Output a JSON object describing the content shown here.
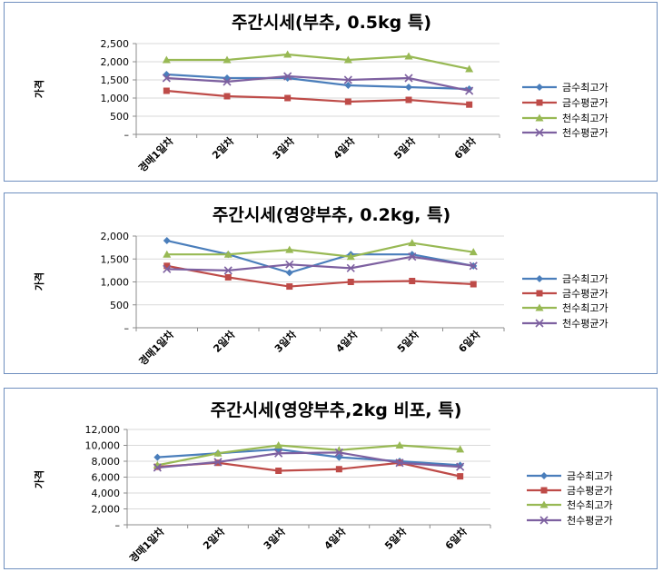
{
  "chart_data": [
    {
      "type": "line",
      "title": "주간시세(부추, 0.5kg 특)",
      "ylabel": "가격",
      "categories": [
        "경매1일차",
        "2일차",
        "3일차",
        "4일차",
        "5일차",
        "6일차"
      ],
      "yticks": [
        "–",
        "500",
        "1,000",
        "1,500",
        "2,000",
        "2,500"
      ],
      "ylim": [
        0,
        2500
      ],
      "series": [
        {
          "name": "금수최고가",
          "values": [
            1650,
            1550,
            1550,
            1350,
            1300,
            1250
          ]
        },
        {
          "name": "금수평균가",
          "values": [
            1200,
            1050,
            1000,
            900,
            950,
            820
          ]
        },
        {
          "name": "천수최고가",
          "values": [
            2050,
            2050,
            2200,
            2050,
            2150,
            1800
          ]
        },
        {
          "name": "천수평균가",
          "values": [
            1550,
            1450,
            1600,
            1500,
            1550,
            1200
          ]
        }
      ]
    },
    {
      "type": "line",
      "title": "주간시세(영양부추, 0.2kg, 특)",
      "ylabel": "가격",
      "categories": [
        "경매1일차",
        "2일차",
        "3일차",
        "4일차",
        "5일차",
        "6일차"
      ],
      "yticks": [
        "–",
        "500",
        "1,000",
        "1,500",
        "2,000"
      ],
      "ylim": [
        0,
        2000
      ],
      "series": [
        {
          "name": "금수최고가",
          "values": [
            1900,
            1600,
            1200,
            1600,
            1600,
            1350
          ]
        },
        {
          "name": "금수평균가",
          "values": [
            1350,
            1100,
            900,
            1000,
            1020,
            950
          ]
        },
        {
          "name": "천수최고가",
          "values": [
            1600,
            1600,
            1700,
            1550,
            1850,
            1650
          ]
        },
        {
          "name": "천수평균가",
          "values": [
            1280,
            1250,
            1380,
            1300,
            1550,
            1350
          ]
        }
      ]
    },
    {
      "type": "line",
      "title": "주간시세(영양부추,2kg 비포, 특)",
      "ylabel": "가격",
      "categories": [
        "경매1일차",
        "2일차",
        "3일차",
        "4일차",
        "5일차",
        "6일차"
      ],
      "yticks": [
        "–",
        "2,000",
        "4,000",
        "6,000",
        "8,000",
        "10,000",
        "12,000"
      ],
      "ylim": [
        0,
        12000
      ],
      "series": [
        {
          "name": "금수최고가",
          "values": [
            8500,
            9000,
            9500,
            8500,
            8000,
            7500
          ]
        },
        {
          "name": "금수평균가",
          "values": [
            7300,
            7800,
            6800,
            7000,
            7800,
            6100
          ]
        },
        {
          "name": "천수최고가",
          "values": [
            7500,
            9000,
            10000,
            9400,
            10000,
            9500
          ]
        },
        {
          "name": "천수평균가",
          "values": [
            7200,
            7900,
            9000,
            9100,
            7800,
            7300
          ]
        }
      ]
    }
  ],
  "colors": {
    "금수최고가": "#4a7ebb",
    "금수평균가": "#be4b48",
    "천수최고가": "#98b954",
    "천수평균가": "#7d60a0",
    "grid": "#d9d9d9",
    "axis": "#8c8c8c",
    "frame": "#6f8fbf"
  },
  "markers": {
    "금수최고가": "diamond",
    "금수평균가": "square",
    "천수최고가": "triangle",
    "천수평균가": "x"
  }
}
